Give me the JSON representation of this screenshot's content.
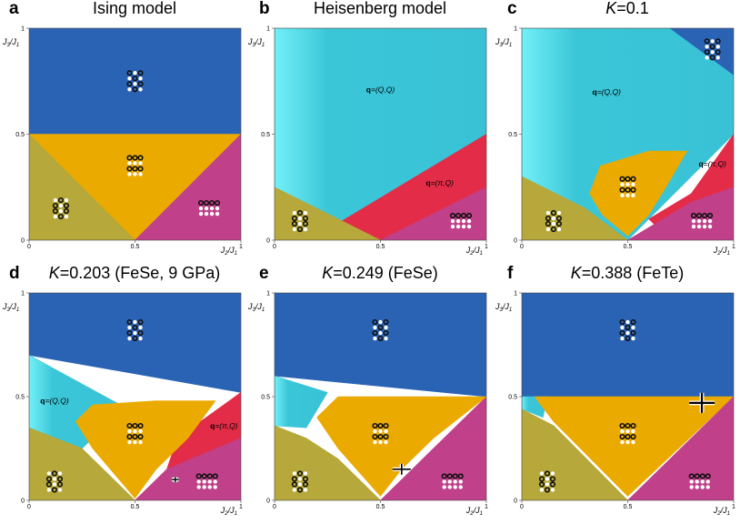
{
  "colors": {
    "ising_dark_blue": "#2b63b4",
    "cyan": "#3bc6d8",
    "cyan_light": "#62e4f0",
    "orange": "#eaaa00",
    "olive": "#b6a83a",
    "magenta": "#c0408a",
    "red": "#e32c47",
    "dot_black": "#111111",
    "dot_white": "#ffffff"
  },
  "chart_data": [
    {
      "type": "heatmap",
      "panel": "a",
      "title": "Ising model",
      "xlabel": "J2/J1",
      "ylabel": "J3/J1",
      "xlim": [
        0,
        1
      ],
      "ylim": [
        0,
        1
      ],
      "xticks": [
        "0",
        "0.5",
        "1"
      ],
      "yticks": [
        "0",
        "0.5",
        "1"
      ],
      "regions": [
        {
          "phase": "upper",
          "color": "ising_dark_blue",
          "poly": [
            [
              0,
              1
            ],
            [
              1,
              1
            ],
            [
              1,
              0.5
            ],
            [
              0,
              0.5
            ]
          ]
        },
        {
          "phase": "stripe",
          "color": "orange",
          "poly": [
            [
              0,
              0.5
            ],
            [
              1,
              0.5
            ],
            [
              0.5,
              0
            ]
          ]
        },
        {
          "phase": "lower-left",
          "color": "olive",
          "poly": [
            [
              0,
              0
            ],
            [
              0.5,
              0
            ],
            [
              0,
              0.5
            ]
          ]
        },
        {
          "phase": "lower-right",
          "color": "magenta",
          "poly": [
            [
              0.5,
              0
            ],
            [
              1,
              0
            ],
            [
              1,
              0.5
            ]
          ]
        }
      ],
      "motifs": [
        {
          "kind": "A",
          "x": 0.5,
          "y": 0.75
        },
        {
          "kind": "B",
          "x": 0.5,
          "y": 0.35
        },
        {
          "kind": "C",
          "x": 0.15,
          "y": 0.15
        },
        {
          "kind": "D",
          "x": 0.85,
          "y": 0.15
        }
      ],
      "labels": [],
      "markers": []
    },
    {
      "type": "heatmap",
      "panel": "b",
      "title": "Heisenberg model",
      "xlabel": "J2/J1",
      "ylabel": "J3/J1",
      "xlim": [
        0,
        1
      ],
      "ylim": [
        0,
        1
      ],
      "xticks": [
        "0",
        "0.5",
        "1"
      ],
      "yticks": [
        "0",
        "0.5",
        "1"
      ],
      "regions": [
        {
          "phase": "q=(Q,Q)",
          "color": "cyan",
          "poly": [
            [
              0,
              0.25
            ],
            [
              0,
              1
            ],
            [
              1,
              1
            ],
            [
              1,
              0.5
            ],
            [
              0.5,
              0
            ],
            [
              0.3,
              0.08
            ]
          ],
          "gradient": true
        },
        {
          "phase": "q=(pi,Q)",
          "color": "red",
          "poly": [
            [
              0.3,
              0.08
            ],
            [
              0.5,
              0
            ],
            [
              1,
              0
            ],
            [
              1,
              0.5
            ]
          ]
        },
        {
          "phase": "lower-right",
          "color": "magenta",
          "poly": [
            [
              0.5,
              0
            ],
            [
              1,
              0
            ],
            [
              1,
              0.25
            ]
          ]
        },
        {
          "phase": "lower-left",
          "color": "olive",
          "poly": [
            [
              0,
              0
            ],
            [
              0.5,
              0
            ],
            [
              0,
              0.25
            ]
          ]
        }
      ],
      "motifs": [
        {
          "kind": "C",
          "x": 0.12,
          "y": 0.09
        },
        {
          "kind": "D",
          "x": 0.88,
          "y": 0.09
        }
      ],
      "labels": [
        {
          "q": "q",
          "rest": "=(Q,Q)",
          "x": 0.5,
          "y": 0.71
        },
        {
          "q": "q",
          "rest": "=(π,Q)",
          "x": 0.78,
          "y": 0.27
        }
      ],
      "markers": []
    },
    {
      "type": "heatmap",
      "panel": "c",
      "title": "K=0.1",
      "xlabel": "J2/J1",
      "ylabel": "J3/J1",
      "xlim": [
        0,
        1
      ],
      "ylim": [
        0,
        1
      ],
      "xticks": [
        "0",
        "0.5",
        "1"
      ],
      "yticks": [
        "0",
        "0.5",
        "1"
      ],
      "regions": [
        {
          "phase": "q=(Q,Q)",
          "color": "cyan",
          "poly": [
            [
              0,
              0.3
            ],
            [
              0,
              1
            ],
            [
              0.7,
              1
            ],
            [
              1,
              0.78
            ],
            [
              1,
              0.5
            ],
            [
              0.5,
              0
            ],
            [
              0.3,
              0.15
            ]
          ],
          "gradient": true
        },
        {
          "phase": "upper",
          "color": "ising_dark_blue",
          "poly": [
            [
              0.7,
              1
            ],
            [
              1,
              1
            ],
            [
              1,
              0.78
            ]
          ]
        },
        {
          "phase": "q=(pi,Q)",
          "color": "red",
          "poly": [
            [
              0.6,
              0.1
            ],
            [
              0.8,
              0.22
            ],
            [
              1,
              0.5
            ],
            [
              1,
              0.15
            ],
            [
              0.7,
              0
            ]
          ]
        },
        {
          "phase": "lower-right",
          "color": "magenta",
          "poly": [
            [
              0.5,
              0
            ],
            [
              1,
              0
            ],
            [
              1,
              0.25
            ],
            [
              0.8,
              0.18
            ]
          ]
        },
        {
          "phase": "lower-left",
          "color": "olive",
          "poly": [
            [
              0,
              0
            ],
            [
              0.5,
              0
            ],
            [
              0.3,
              0.15
            ],
            [
              0,
              0.3
            ]
          ]
        },
        {
          "phase": "stripe",
          "color": "orange",
          "poly": [
            [
              0.5,
              0.02
            ],
            [
              0.38,
              0.12
            ],
            [
              0.32,
              0.22
            ],
            [
              0.37,
              0.35
            ],
            [
              0.6,
              0.42
            ],
            [
              0.78,
              0.42
            ],
            [
              0.68,
              0.25
            ],
            [
              0.6,
              0.12
            ]
          ]
        }
      ],
      "motifs": [
        {
          "kind": "A",
          "x": 0.9,
          "y": 0.9
        },
        {
          "kind": "B",
          "x": 0.5,
          "y": 0.25
        },
        {
          "kind": "C",
          "x": 0.15,
          "y": 0.09
        },
        {
          "kind": "D",
          "x": 0.85,
          "y": 0.09
        }
      ],
      "labels": [
        {
          "q": "q",
          "rest": "=(Q,Q)",
          "x": 0.4,
          "y": 0.7
        },
        {
          "q": "q",
          "rest": "=(π,Q)",
          "x": 0.9,
          "y": 0.36
        }
      ],
      "markers": []
    },
    {
      "type": "heatmap",
      "panel": "d",
      "title": "K=0.203 (FeSe, 9 GPa)",
      "xlabel": "J2/J1",
      "ylabel": "J3/J1",
      "xlim": [
        0,
        1
      ],
      "ylim": [
        0,
        1
      ],
      "xticks": [
        "0",
        "0.5",
        "1"
      ],
      "yticks": [
        "0",
        "0.5",
        "1"
      ],
      "regions": [
        {
          "phase": "upper",
          "color": "ising_dark_blue",
          "poly": [
            [
              0,
              0.7
            ],
            [
              0,
              1
            ],
            [
              1,
              1
            ],
            [
              1,
              0.52
            ]
          ]
        },
        {
          "phase": "q=(Q,Q)",
          "color": "cyan",
          "poly": [
            [
              0,
              0.35
            ],
            [
              0,
              0.7
            ],
            [
              0.45,
              0.45
            ],
            [
              0.25,
              0.25
            ]
          ],
          "gradient": true
        },
        {
          "phase": "q=(pi,Q)",
          "color": "red",
          "poly": [
            [
              0.7,
              0.3
            ],
            [
              1,
              0.52
            ],
            [
              1,
              0.28
            ],
            [
              0.65,
              0.15
            ]
          ]
        },
        {
          "phase": "lower-right",
          "color": "magenta",
          "poly": [
            [
              0.5,
              0
            ],
            [
              1,
              0
            ],
            [
              1,
              0.3
            ],
            [
              0.65,
              0.15
            ]
          ]
        },
        {
          "phase": "lower-left",
          "color": "olive",
          "poly": [
            [
              0,
              0
            ],
            [
              0.5,
              0
            ],
            [
              0.25,
              0.25
            ],
            [
              0,
              0.35
            ]
          ]
        },
        {
          "phase": "stripe",
          "color": "orange",
          "poly": [
            [
              0.5,
              0.01
            ],
            [
              0.3,
              0.25
            ],
            [
              0.22,
              0.38
            ],
            [
              0.3,
              0.46
            ],
            [
              0.6,
              0.48
            ],
            [
              0.88,
              0.48
            ],
            [
              0.75,
              0.3
            ],
            [
              0.6,
              0.15
            ]
          ]
        }
      ],
      "motifs": [
        {
          "kind": "A",
          "x": 0.5,
          "y": 0.82
        },
        {
          "kind": "B",
          "x": 0.5,
          "y": 0.32
        },
        {
          "kind": "C",
          "x": 0.12,
          "y": 0.09
        },
        {
          "kind": "D",
          "x": 0.84,
          "y": 0.09
        }
      ],
      "labels": [
        {
          "q": "q",
          "rest": "=(Q,Q)",
          "x": 0.12,
          "y": 0.48
        },
        {
          "q": "q",
          "rest": "=(π,Q)",
          "x": 0.92,
          "y": 0.36
        }
      ],
      "markers": [
        {
          "x": 0.69,
          "y": 0.1,
          "size": "small"
        }
      ]
    },
    {
      "type": "heatmap",
      "panel": "e",
      "title": "K=0.249 (FeSe)",
      "xlabel": "J2/J1",
      "ylabel": "J3/J1",
      "xlim": [
        0,
        1
      ],
      "ylim": [
        0,
        1
      ],
      "xticks": [
        "0",
        "0.5",
        "1"
      ],
      "yticks": [
        "0",
        "0.5",
        "1"
      ],
      "regions": [
        {
          "phase": "upper",
          "color": "ising_dark_blue",
          "poly": [
            [
              0,
              0.6
            ],
            [
              0,
              1
            ],
            [
              1,
              1
            ],
            [
              1,
              0.5
            ]
          ]
        },
        {
          "phase": "q=(Q,Q)",
          "color": "cyan",
          "poly": [
            [
              0,
              0.36
            ],
            [
              0,
              0.6
            ],
            [
              0.25,
              0.52
            ],
            [
              0.15,
              0.35
            ]
          ],
          "gradient": true
        },
        {
          "phase": "lower-right",
          "color": "magenta",
          "poly": [
            [
              0.5,
              0
            ],
            [
              1,
              0
            ],
            [
              1,
              0.5
            ],
            [
              0.7,
              0.2
            ]
          ]
        },
        {
          "phase": "lower-left",
          "color": "olive",
          "poly": [
            [
              0,
              0
            ],
            [
              0.5,
              0
            ],
            [
              0.3,
              0.2
            ],
            [
              0.15,
              0.3
            ],
            [
              0,
              0.36
            ]
          ]
        },
        {
          "phase": "stripe",
          "color": "orange",
          "poly": [
            [
              0.5,
              0.02
            ],
            [
              0.3,
              0.25
            ],
            [
              0.2,
              0.4
            ],
            [
              0.3,
              0.5
            ],
            [
              0.6,
              0.5
            ],
            [
              1,
              0.5
            ],
            [
              0.75,
              0.3
            ],
            [
              0.6,
              0.15
            ]
          ]
        }
      ],
      "motifs": [
        {
          "kind": "A",
          "x": 0.5,
          "y": 0.82
        },
        {
          "kind": "B",
          "x": 0.5,
          "y": 0.32
        },
        {
          "kind": "C",
          "x": 0.12,
          "y": 0.09
        },
        {
          "kind": "D",
          "x": 0.84,
          "y": 0.09
        }
      ],
      "labels": [],
      "markers": [
        {
          "x": 0.6,
          "y": 0.15,
          "size": "medium"
        }
      ]
    },
    {
      "type": "heatmap",
      "panel": "f",
      "title": "K=0.388 (FeTe)",
      "xlabel": "J2/J1",
      "ylabel": "J3/J1",
      "xlim": [
        0,
        1
      ],
      "ylim": [
        0,
        1
      ],
      "xticks": [
        "0",
        "0.5",
        "1"
      ],
      "yticks": [
        "0",
        "0.5",
        "1"
      ],
      "regions": [
        {
          "phase": "upper",
          "color": "ising_dark_blue",
          "poly": [
            [
              0,
              0.5
            ],
            [
              0,
              1
            ],
            [
              1,
              1
            ],
            [
              1,
              0.5
            ]
          ]
        },
        {
          "phase": "q=(Q,Q)",
          "color": "cyan",
          "poly": [
            [
              0,
              0.44
            ],
            [
              0,
              0.5
            ],
            [
              0.12,
              0.5
            ],
            [
              0.1,
              0.4
            ]
          ],
          "gradient": true
        },
        {
          "phase": "stripe",
          "color": "orange",
          "poly": [
            [
              0.06,
              0.5
            ],
            [
              1,
              0.5
            ],
            [
              0.5,
              0.02
            ],
            [
              0.15,
              0.38
            ]
          ]
        },
        {
          "phase": "lower-left",
          "color": "olive",
          "poly": [
            [
              0,
              0
            ],
            [
              0.5,
              0
            ],
            [
              0.15,
              0.36
            ],
            [
              0,
              0.44
            ]
          ]
        },
        {
          "phase": "lower-right",
          "color": "magenta",
          "poly": [
            [
              0.5,
              0
            ],
            [
              1,
              0
            ],
            [
              1,
              0.5
            ]
          ]
        }
      ],
      "motifs": [
        {
          "kind": "A",
          "x": 0.5,
          "y": 0.82
        },
        {
          "kind": "B",
          "x": 0.5,
          "y": 0.32
        },
        {
          "kind": "C",
          "x": 0.12,
          "y": 0.09
        },
        {
          "kind": "D",
          "x": 0.84,
          "y": 0.09
        }
      ],
      "labels": [],
      "markers": [
        {
          "x": 0.85,
          "y": 0.47,
          "size": "large"
        }
      ]
    }
  ]
}
